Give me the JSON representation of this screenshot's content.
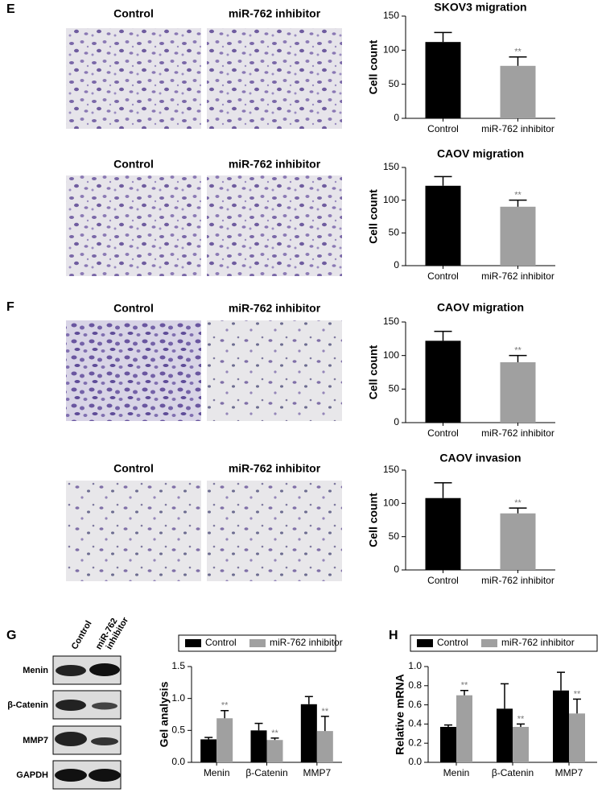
{
  "figure": {
    "panels": [
      "E",
      "F",
      "G",
      "H"
    ],
    "image_rows": [
      {
        "labels": [
          "Control",
          "miR-762 inhibitor"
        ]
      },
      {
        "labels": [
          "Control",
          "miR-762 inhibitor"
        ]
      },
      {
        "labels": [
          "Control",
          "miR-762 inhibitor"
        ]
      },
      {
        "labels": [
          "Control",
          "miR-762 inhibitor"
        ]
      }
    ],
    "blot": {
      "lanes": [
        {
          "lines": [
            "Control"
          ]
        },
        {
          "lines": [
            "miR-762",
            "inhibitor"
          ]
        }
      ],
      "rows": [
        "Menin",
        "β-Catenin",
        "MMP7",
        "GAPDH"
      ]
    }
  },
  "chart_data": [
    {
      "type": "bar",
      "title": "SKOV3 migration",
      "ylabel": "Cell count",
      "categories": [
        "Control",
        "miR-762 inhibitor"
      ],
      "values": [
        112,
        77
      ],
      "errors": [
        14,
        13
      ],
      "colors": [
        "#000000",
        "#a0a0a0"
      ],
      "annotations": [
        null,
        "**"
      ],
      "ylim": [
        0,
        150
      ],
      "yticks": [
        0,
        50,
        100,
        150
      ]
    },
    {
      "type": "bar",
      "title": "CAOV migration",
      "ylabel": "Cell count",
      "categories": [
        "Control",
        "miR-762 inhibitor"
      ],
      "values": [
        122,
        90
      ],
      "errors": [
        14,
        10
      ],
      "colors": [
        "#000000",
        "#a0a0a0"
      ],
      "annotations": [
        null,
        "**"
      ],
      "ylim": [
        0,
        150
      ],
      "yticks": [
        0,
        50,
        100,
        150
      ]
    },
    {
      "type": "bar",
      "title": "CAOV migration",
      "ylabel": "Cell count",
      "categories": [
        "Control",
        "miR-762 inhibitor"
      ],
      "values": [
        122,
        90
      ],
      "errors": [
        14,
        10
      ],
      "colors": [
        "#000000",
        "#a0a0a0"
      ],
      "annotations": [
        null,
        "**"
      ],
      "ylim": [
        0,
        150
      ],
      "yticks": [
        0,
        50,
        100,
        150
      ]
    },
    {
      "type": "bar",
      "title": "CAOV invasion",
      "ylabel": "Cell count",
      "categories": [
        "Control",
        "miR-762 inhibitor"
      ],
      "values": [
        108,
        85
      ],
      "errors": [
        23,
        8
      ],
      "colors": [
        "#000000",
        "#a0a0a0"
      ],
      "annotations": [
        null,
        "**"
      ],
      "ylim": [
        0,
        150
      ],
      "yticks": [
        0,
        50,
        100,
        150
      ]
    },
    {
      "type": "grouped_bar",
      "ylabel": "Gel analysis",
      "categories": [
        "Menin",
        "β-Catenin",
        "MMP7"
      ],
      "series": [
        {
          "name": "Control",
          "color": "#000000",
          "values": [
            0.36,
            0.5,
            0.91
          ],
          "errors": [
            0.03,
            0.11,
            0.12
          ]
        },
        {
          "name": "miR-762 inhibitor",
          "color": "#a0a0a0",
          "values": [
            0.69,
            0.35,
            0.49
          ],
          "errors": [
            0.12,
            0.03,
            0.23
          ],
          "annotations": [
            "**",
            "**",
            "**"
          ]
        }
      ],
      "ylim": [
        0,
        1.5
      ],
      "yticks": [
        {
          "value": 0,
          "label": "0.0"
        },
        {
          "value": 0.5,
          "label": "0.5"
        },
        {
          "value": 1,
          "label": "1.0"
        },
        {
          "value": 1.5,
          "label": "1.5"
        }
      ]
    },
    {
      "type": "grouped_bar",
      "ylabel": "Relative mRNA",
      "categories": [
        "Menin",
        "β-Catenin",
        "MMP7"
      ],
      "series": [
        {
          "name": "Control",
          "color": "#000000",
          "values": [
            0.37,
            0.56,
            0.75
          ],
          "errors": [
            0.02,
            0.26,
            0.19
          ]
        },
        {
          "name": "miR-762 inhibitor",
          "color": "#a0a0a0",
          "values": [
            0.7,
            0.37,
            0.51
          ],
          "errors": [
            0.05,
            0.03,
            0.15
          ],
          "annotations": [
            "**",
            "**",
            "**"
          ]
        }
      ],
      "ylim": [
        0,
        1.0
      ],
      "yticks": [
        {
          "value": 0,
          "label": "0.0"
        },
        {
          "value": 0.2,
          "label": "0.2"
        },
        {
          "value": 0.4,
          "label": "0.4"
        },
        {
          "value": 0.6,
          "label": "0.6"
        },
        {
          "value": 0.8,
          "label": "0.8"
        },
        {
          "value": 1,
          "label": "1.0"
        }
      ]
    }
  ]
}
